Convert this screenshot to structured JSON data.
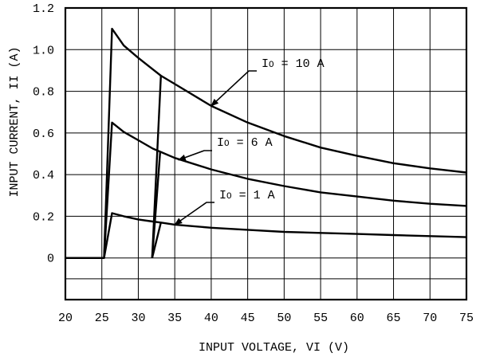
{
  "chart_data": {
    "type": "line",
    "xlabel": "INPUT VOLTAGE, VI (V)",
    "ylabel": "INPUT CURRENT, II (A)",
    "xlim": [
      20,
      75
    ],
    "ylim": [
      -0.2,
      1.2
    ],
    "grid": true,
    "x_ticks": [
      20,
      25,
      30,
      35,
      40,
      45,
      50,
      55,
      60,
      65,
      70,
      75
    ],
    "y_ticks": [
      1.2,
      1.0,
      0.8,
      0.6,
      0.4,
      0.2,
      0
    ],
    "y_tick_labels": [
      "1.2",
      "1.0",
      "0.8",
      "0.6",
      "0.4",
      "0.2",
      "0"
    ],
    "series": [
      {
        "name": "IO = 10 A",
        "label_prefix": "I",
        "label_subscript": "O",
        "label_suffix": " = 10 A",
        "x": [
          20,
          25.3,
          26.4,
          28,
          30,
          32,
          33.1,
          35,
          40,
          45,
          50,
          55,
          60,
          65,
          70,
          75
        ],
        "y": [
          0,
          0,
          1.1,
          1.02,
          0.96,
          0.905,
          0.875,
          0.835,
          0.73,
          0.65,
          0.585,
          0.53,
          0.49,
          0.455,
          0.43,
          0.41
        ]
      },
      {
        "name": "IO = 6 A",
        "label_prefix": "I",
        "label_subscript": "O",
        "label_suffix": " = 6 A",
        "x": [
          20,
          25.3,
          26.4,
          28,
          30,
          32,
          33,
          35,
          40,
          45,
          50,
          55,
          60,
          65,
          70,
          75
        ],
        "y": [
          0,
          0,
          0.65,
          0.605,
          0.565,
          0.525,
          0.51,
          0.48,
          0.425,
          0.38,
          0.345,
          0.315,
          0.295,
          0.275,
          0.26,
          0.25
        ]
      },
      {
        "name": "IO = 1 A",
        "label_prefix": "I",
        "label_subscript": "O",
        "label_suffix": " = 1 A",
        "x": [
          20,
          25.3,
          26.4,
          28,
          30,
          32,
          33.1,
          35,
          40,
          45,
          50,
          55,
          60,
          65,
          70,
          75
        ],
        "y": [
          0,
          0,
          0.215,
          0.2,
          0.185,
          0.175,
          0.17,
          0.16,
          0.145,
          0.135,
          0.125,
          0.12,
          0.115,
          0.11,
          0.105,
          0.1
        ]
      }
    ],
    "turn_off_paths": [
      {
        "series": "IO = 10 A",
        "x": [
          31.9,
          33.1
        ],
        "y": [
          0,
          0.875
        ]
      },
      {
        "series": "IO = 6 A",
        "x": [
          31.9,
          33
        ],
        "y": [
          0,
          0.51
        ]
      },
      {
        "series": "IO = 1 A",
        "x": [
          31.9,
          33.1
        ],
        "y": [
          0,
          0.17
        ]
      }
    ],
    "annotations": [
      {
        "series": "IO = 10 A",
        "arrow_to": [
          40,
          0.73
        ]
      },
      {
        "series": "IO = 6 A",
        "arrow_to": [
          35.5,
          0.47
        ]
      },
      {
        "series": "IO = 1 A",
        "arrow_to": [
          35,
          0.16
        ]
      }
    ],
    "colors": {
      "line": "#000000",
      "grid": "#000000",
      "background": "#ffffff"
    }
  }
}
